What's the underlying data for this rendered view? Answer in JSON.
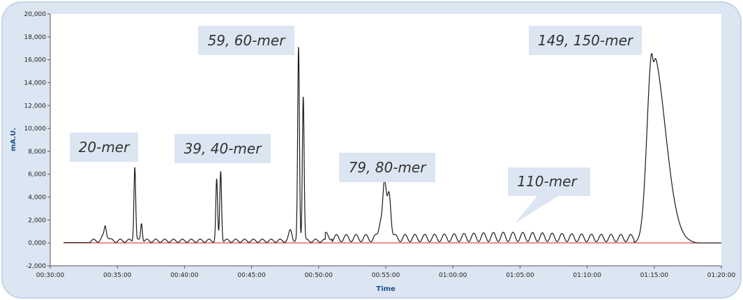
{
  "colors": {
    "frame_fill": "#dce6f2",
    "frame_stroke": "#c4d3e6",
    "plot_bg": "#ffffff",
    "trace": "#1a1a1a",
    "baseline": "#d32020",
    "axis_title": "#1f4e8c",
    "callout_fill": "#dce6f2"
  },
  "chart_data": {
    "type": "line",
    "title": "",
    "xlabel": "Time",
    "ylabel": "mA.U.",
    "x_unit": "minutes",
    "xlim": [
      30,
      80
    ],
    "ylim": [
      -2000,
      20000
    ],
    "grid": false,
    "y_ticks": [
      -2000,
      0,
      2000,
      4000,
      6000,
      8000,
      10000,
      12000,
      14000,
      16000,
      18000,
      20000
    ],
    "y_tick_labels": [
      "-2,000",
      "0,000",
      "2,000",
      "4,000",
      "6,000",
      "8,000",
      "10,000",
      "12,000",
      "14,000",
      "16,000",
      "18,000",
      "20,000"
    ],
    "x_ticks": [
      30,
      35,
      40,
      45,
      50,
      55,
      60,
      65,
      70,
      75,
      80
    ],
    "x_tick_labels": [
      "00:30:00",
      "00:35:00",
      "00:40:00",
      "00:45:00",
      "00:50:00",
      "00:55:00",
      "01:00:00",
      "01:05:00",
      "01:10:00",
      "01:15:00",
      "01:20:00"
    ],
    "baseline_y": 0,
    "peaks": [
      {
        "x": 34.1,
        "y": 700
      },
      {
        "x": 36.3,
        "y": 6500
      },
      {
        "x": 36.8,
        "y": 1600
      },
      {
        "x": 42.4,
        "y": 5300
      },
      {
        "x": 42.7,
        "y": 6100
      },
      {
        "x": 48.5,
        "y": 16800
      },
      {
        "x": 48.85,
        "y": 12700
      },
      {
        "x": 54.9,
        "y": 4700
      },
      {
        "x": 55.25,
        "y": 4100
      },
      {
        "x": 74.8,
        "y": 17600
      },
      {
        "x": 75.1,
        "y": 17100
      }
    ],
    "annotations": [
      {
        "text": "20-mer"
      },
      {
        "text": "39, 40-mer"
      },
      {
        "text": "59, 60-mer"
      },
      {
        "text": "79, 80-mer"
      },
      {
        "text": "110-mer"
      },
      {
        "text": "149, 150-mer"
      }
    ]
  }
}
